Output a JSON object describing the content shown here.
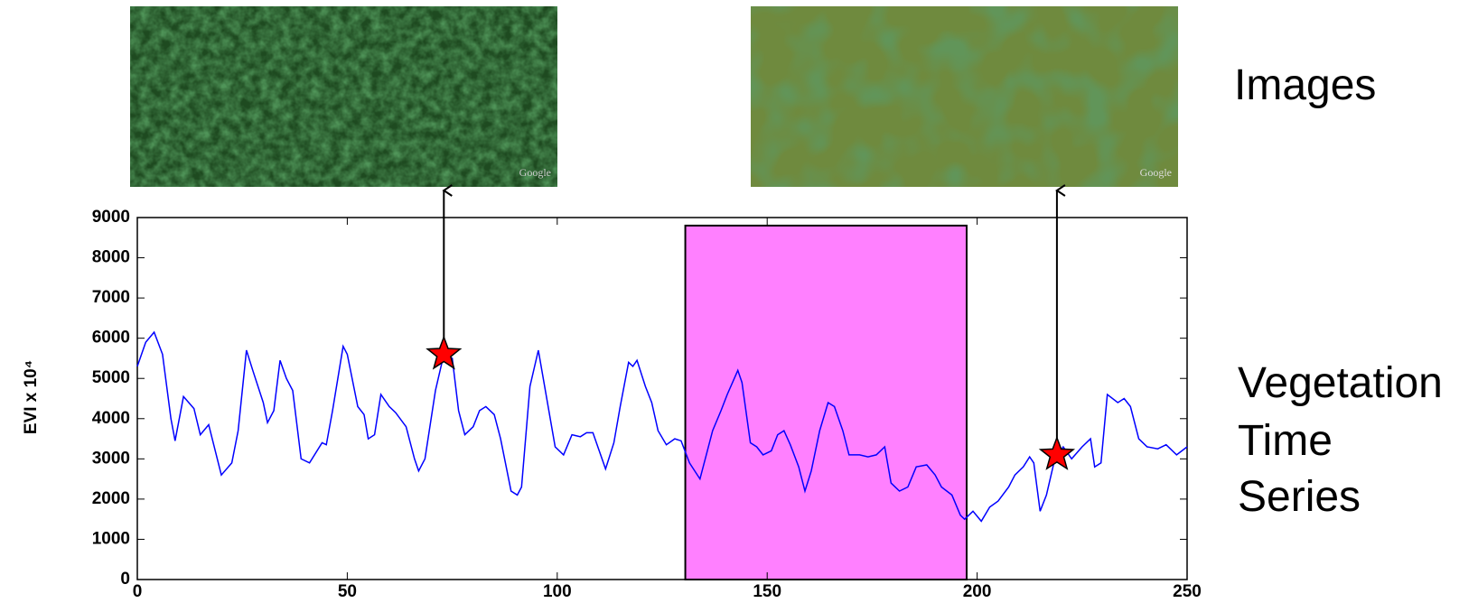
{
  "chart_data": {
    "type": "line",
    "ylabel": "EVI x 10⁴",
    "side_labels": [
      "Images",
      "Vegetation",
      "Time",
      "Series"
    ],
    "image_watermarks": [
      "Google",
      "Google"
    ],
    "color": "#0000ff",
    "x": [
      0,
      2,
      4,
      6,
      8,
      9,
      11,
      13.5,
      15,
      17,
      20,
      22.5,
      24,
      26,
      27.5,
      30,
      31,
      32.5,
      34,
      35.5,
      37,
      39,
      41,
      44,
      45,
      46.5,
      49,
      50,
      52.5,
      54,
      55,
      56.5,
      58,
      60,
      61.5,
      64,
      66,
      67,
      68.5,
      71,
      73,
      75,
      76.5,
      78,
      80,
      81.5,
      83,
      85,
      86.5,
      89,
      90.5,
      91.5,
      93.5,
      95.5,
      97.5,
      99.5,
      101.5,
      103.5,
      105.5,
      107,
      108.5,
      111.5,
      113.5,
      115,
      117,
      118,
      119,
      121,
      122.5,
      124,
      126,
      128,
      129.5,
      131.5,
      134,
      135.5,
      137,
      139,
      140.5,
      143,
      144,
      146,
      147.5,
      149,
      151,
      152.5,
      154,
      155.5,
      157.5,
      159,
      160.5,
      162.5,
      164.5,
      166,
      168,
      169.5,
      172,
      174,
      176,
      178,
      179.5,
      181.5,
      183.5,
      185.5,
      188,
      190,
      191.5,
      194,
      196,
      197,
      199,
      201,
      203,
      205,
      207.5,
      209,
      211,
      212.5,
      213.5,
      215,
      216.5,
      218.5,
      220.5,
      222.5,
      225,
      227,
      228,
      229.5,
      231,
      233.5,
      235,
      236.5,
      238.5,
      240.5,
      243,
      245,
      247.5,
      250
    ],
    "values": [
      5300,
      5900,
      6150,
      5600,
      4000,
      3450,
      4550,
      4250,
      3600,
      3850,
      2600,
      2900,
      3700,
      5700,
      5200,
      4400,
      3900,
      4200,
      5450,
      5000,
      4700,
      3000,
      2900,
      3400,
      3350,
      4200,
      5800,
      5600,
      4300,
      4100,
      3500,
      3600,
      4600,
      4300,
      4150,
      3800,
      3000,
      2700,
      3000,
      4700,
      5600,
      5500,
      4200,
      3600,
      3800,
      4200,
      4300,
      4100,
      3500,
      2200,
      2100,
      2300,
      4800,
      5700,
      4500,
      3300,
      3100,
      3600,
      3550,
      3650,
      3650,
      2750,
      3400,
      4300,
      5400,
      5300,
      5450,
      4800,
      4400,
      3700,
      3350,
      3500,
      3450,
      2900,
      2500,
      3100,
      3700,
      4200,
      4600,
      5200,
      4900,
      3400,
      3300,
      3100,
      3200,
      3600,
      3700,
      3350,
      2800,
      2200,
      2700,
      3700,
      4400,
      4300,
      3700,
      3100,
      3100,
      3050,
      3100,
      3300,
      2400,
      2200,
      2300,
      2800,
      2850,
      2600,
      2300,
      2100,
      1600,
      1500,
      1700,
      1450,
      1800,
      1950,
      2300,
      2600,
      2800,
      3050,
      2900,
      1700,
      2100,
      3000,
      3300,
      3000,
      3300,
      3500,
      2800,
      2900,
      4600,
      4400,
      4500,
      4300,
      3500,
      3300,
      3250,
      3350,
      3100,
      3300
    ],
    "highlight": {
      "x": [
        130.5,
        197.5
      ],
      "y": [
        0,
        8800
      ],
      "color": "#ff80ff"
    },
    "markers": {
      "x": [
        73,
        219
      ],
      "y": [
        5600,
        3100
      ],
      "color": "#ff0000"
    },
    "xlim": [
      0,
      250
    ],
    "xticks": [
      0,
      50,
      100,
      150,
      200,
      250
    ],
    "ylim": [
      0,
      9000
    ],
    "yticks": [
      0,
      1000,
      2000,
      3000,
      4000,
      5000,
      6000,
      7000,
      8000,
      9000
    ]
  }
}
